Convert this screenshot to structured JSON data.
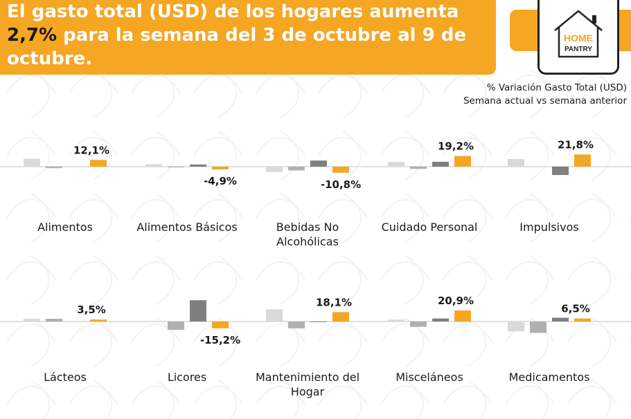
{
  "header": {
    "title_line1": "El gasto total (USD) de los hogares aumenta",
    "title_highlight": "2,7%",
    "title_line2_rest": " para la semana del 3 de octubre al 9 de",
    "title_line3": "octubre."
  },
  "logo": {
    "word1": "HOME",
    "word2": "PANTRY"
  },
  "subtitle": {
    "line1": "% Variación Gasto Total (USD)",
    "line2": "Semana actual vs semana anterior"
  },
  "colors": {
    "accent": "#f5a623",
    "bar_light": "#d9d9d9",
    "bar_mid": "#b0b0b0",
    "bar_dark": "#7f7f7f",
    "bar_current": "#f5a623",
    "baseline": "#d6d6d6"
  },
  "chart_data": {
    "type": "bar",
    "title": "% Variación Gasto Total (USD) Semana actual vs semana anterior",
    "panels": [
      {
        "category": [
          "Alimentos"
        ],
        "values": [
          5.2,
          -1.0,
          0.0,
          4.4
        ],
        "label": "12,1%"
      },
      {
        "category": [
          "Alimentos Básicos"
        ],
        "values": [
          1.6,
          -0.5,
          1.4,
          -1.8
        ],
        "label": "-4,9%"
      },
      {
        "category": [
          "Bebidas No",
          "Alcohólicas"
        ],
        "values": [
          -3.5,
          -2.5,
          4.0,
          -4.0
        ],
        "label": "-10,8%"
      },
      {
        "category": [
          "Cuidado Personal"
        ],
        "values": [
          3.0,
          -1.5,
          3.2,
          7.0
        ],
        "label": "19,2%"
      },
      {
        "category": [
          "Impulsivos"
        ],
        "values": [
          5.0,
          0.0,
          -5.5,
          8.0
        ],
        "label": "21,8%"
      },
      {
        "category": [
          "Lácteos"
        ],
        "values": [
          1.8,
          1.8,
          0.0,
          1.3
        ],
        "label": "3,5%"
      },
      {
        "category": [
          "Licores"
        ],
        "values": [
          0.0,
          -5.5,
          14.0,
          -4.5
        ],
        "label": "-15,2%"
      },
      {
        "category": [
          "Mantenimiento del",
          "Hogar"
        ],
        "values": [
          8.0,
          -4.5,
          -0.4,
          6.2
        ],
        "label": "18,1%"
      },
      {
        "category": [
          "Misceláneos"
        ],
        "values": [
          1.2,
          -3.5,
          2.0,
          7.3
        ],
        "label": "20,9%"
      },
      {
        "category": [
          "Medicamentos"
        ],
        "values": [
          -6.5,
          -7.5,
          2.5,
          2.0
        ],
        "label": "6,5%"
      }
    ]
  }
}
